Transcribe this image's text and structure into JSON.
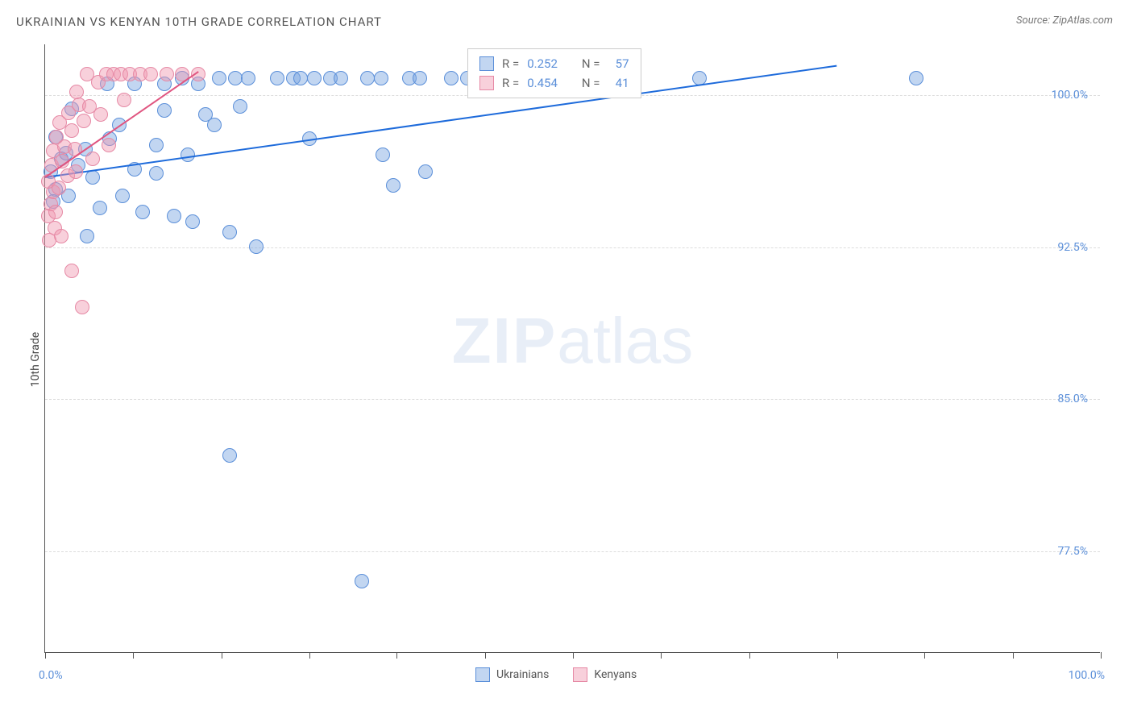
{
  "chart": {
    "title": "UKRAINIAN VS KENYAN 10TH GRADE CORRELATION CHART",
    "source_label": "Source: ZipAtlas.com",
    "y_axis_label": "10th Grade",
    "watermark_zip": "ZIP",
    "watermark_atlas": "atlas",
    "type": "scatter",
    "background_color": "#ffffff",
    "grid_color": "#dddddd",
    "axis_color": "#555555",
    "text_color": "#555555",
    "value_color": "#5b8fd9",
    "xlim": [
      0,
      100
    ],
    "ylim": [
      72.5,
      102.5
    ],
    "x_tick_positions": [
      0,
      8.3,
      16.7,
      25,
      33.3,
      41.7,
      50,
      58.3,
      66.7,
      75,
      83.3,
      91.7,
      100
    ],
    "x_tick_labels": {
      "left": "0.0%",
      "right": "100.0%"
    },
    "y_ticks": [
      {
        "value": 77.5,
        "label": "77.5%"
      },
      {
        "value": 85.0,
        "label": "85.0%"
      },
      {
        "value": 92.5,
        "label": "92.5%"
      },
      {
        "value": 100.0,
        "label": "100.0%"
      }
    ],
    "series": [
      {
        "name": "Ukrainians",
        "fill_color": "rgba(120, 165, 225, 0.45)",
        "stroke_color": "#5b8fd9",
        "swatch_fill": "rgba(120, 165, 225, 0.45)",
        "swatch_stroke": "#5b8fd9",
        "trend_color": "#1e6bdb",
        "trend_width": 2,
        "r_value": "0.252",
        "n_value": "57",
        "trend": {
          "x1": 0,
          "y1": 96.0,
          "x2": 75,
          "y2": 101.5
        },
        "points": [
          {
            "x": 0.5,
            "y": 96.2
          },
          {
            "x": 1,
            "y": 95.3
          },
          {
            "x": 1.5,
            "y": 96.8
          },
          {
            "x": 2,
            "y": 97.1
          },
          {
            "x": 1,
            "y": 97.9
          },
          {
            "x": 2.2,
            "y": 95.0
          },
          {
            "x": 3.1,
            "y": 96.5
          },
          {
            "x": 0.8,
            "y": 94.7
          },
          {
            "x": 2.5,
            "y": 99.3
          },
          {
            "x": 5.2,
            "y": 94.4
          },
          {
            "x": 3.8,
            "y": 97.3
          },
          {
            "x": 4.5,
            "y": 95.9
          },
          {
            "x": 6.1,
            "y": 97.8
          },
          {
            "x": 7.3,
            "y": 95.0
          },
          {
            "x": 5.9,
            "y": 100.5
          },
          {
            "x": 8.5,
            "y": 96.3
          },
          {
            "x": 8.5,
            "y": 100.5
          },
          {
            "x": 9.2,
            "y": 94.2
          },
          {
            "x": 10.5,
            "y": 96.1
          },
          {
            "x": 10.5,
            "y": 97.5
          },
          {
            "x": 11.3,
            "y": 99.2
          },
          {
            "x": 12.2,
            "y": 94.0
          },
          {
            "x": 11.3,
            "y": 100.5
          },
          {
            "x": 13.5,
            "y": 97.0
          },
          {
            "x": 14.5,
            "y": 100.5
          },
          {
            "x": 15.2,
            "y": 99.0
          },
          {
            "x": 16.0,
            "y": 98.5
          },
          {
            "x": 14.0,
            "y": 93.7
          },
          {
            "x": 17.5,
            "y": 93.2
          },
          {
            "x": 18.5,
            "y": 99.4
          },
          {
            "x": 18.0,
            "y": 100.8
          },
          {
            "x": 19.2,
            "y": 100.8
          },
          {
            "x": 20.0,
            "y": 92.5
          },
          {
            "x": 22.0,
            "y": 100.8
          },
          {
            "x": 23.5,
            "y": 100.8
          },
          {
            "x": 24.2,
            "y": 100.8
          },
          {
            "x": 25.5,
            "y": 100.8
          },
          {
            "x": 25.0,
            "y": 97.8
          },
          {
            "x": 27.0,
            "y": 100.8
          },
          {
            "x": 28.0,
            "y": 100.8
          },
          {
            "x": 30.5,
            "y": 100.8
          },
          {
            "x": 31.8,
            "y": 100.8
          },
          {
            "x": 32.0,
            "y": 97.0
          },
          {
            "x": 34.5,
            "y": 100.8
          },
          {
            "x": 35.5,
            "y": 100.8
          },
          {
            "x": 36.0,
            "y": 96.2
          },
          {
            "x": 38.5,
            "y": 100.8
          },
          {
            "x": 40.0,
            "y": 100.8
          },
          {
            "x": 33.0,
            "y": 95.5
          },
          {
            "x": 17.5,
            "y": 82.2
          },
          {
            "x": 30.0,
            "y": 76.0
          },
          {
            "x": 62.0,
            "y": 100.8
          },
          {
            "x": 82.5,
            "y": 100.8
          },
          {
            "x": 16.5,
            "y": 100.8
          },
          {
            "x": 13.0,
            "y": 100.8
          },
          {
            "x": 7.0,
            "y": 98.5
          },
          {
            "x": 4.0,
            "y": 93.0
          }
        ]
      },
      {
        "name": "Kenyans",
        "fill_color": "rgba(240, 150, 175, 0.45)",
        "stroke_color": "#e689a5",
        "swatch_fill": "rgba(240, 150, 175, 0.45)",
        "swatch_stroke": "#e689a5",
        "trend_color": "#e05580",
        "trend_width": 2,
        "r_value": "0.454",
        "n_value": "41",
        "trend": {
          "x1": 0,
          "y1": 96.0,
          "x2": 14.5,
          "y2": 101.2
        },
        "points": [
          {
            "x": 0.3,
            "y": 94.0
          },
          {
            "x": 0.5,
            "y": 94.6
          },
          {
            "x": 0.8,
            "y": 95.2
          },
          {
            "x": 0.3,
            "y": 95.7
          },
          {
            "x": 1.0,
            "y": 94.2
          },
          {
            "x": 0.6,
            "y": 96.5
          },
          {
            "x": 1.3,
            "y": 95.4
          },
          {
            "x": 0.8,
            "y": 97.2
          },
          {
            "x": 1.6,
            "y": 96.7
          },
          {
            "x": 1.1,
            "y": 97.9
          },
          {
            "x": 1.8,
            "y": 97.4
          },
          {
            "x": 0.9,
            "y": 93.4
          },
          {
            "x": 2.1,
            "y": 96.0
          },
          {
            "x": 2.5,
            "y": 98.2
          },
          {
            "x": 1.4,
            "y": 98.6
          },
          {
            "x": 2.8,
            "y": 97.3
          },
          {
            "x": 2.2,
            "y": 99.1
          },
          {
            "x": 3.2,
            "y": 99.5
          },
          {
            "x": 2.9,
            "y": 96.2
          },
          {
            "x": 3.7,
            "y": 98.7
          },
          {
            "x": 3.0,
            "y": 100.1
          },
          {
            "x": 4.2,
            "y": 99.4
          },
          {
            "x": 4.0,
            "y": 101.0
          },
          {
            "x": 5.0,
            "y": 100.6
          },
          {
            "x": 4.5,
            "y": 96.8
          },
          {
            "x": 5.8,
            "y": 101.0
          },
          {
            "x": 6.5,
            "y": 101.0
          },
          {
            "x": 5.3,
            "y": 99.0
          },
          {
            "x": 7.2,
            "y": 101.0
          },
          {
            "x": 8.0,
            "y": 101.0
          },
          {
            "x": 7.5,
            "y": 99.7
          },
          {
            "x": 9.0,
            "y": 101.0
          },
          {
            "x": 10.0,
            "y": 101.0
          },
          {
            "x": 11.5,
            "y": 101.0
          },
          {
            "x": 13.0,
            "y": 101.0
          },
          {
            "x": 14.5,
            "y": 101.0
          },
          {
            "x": 2.5,
            "y": 91.3
          },
          {
            "x": 3.5,
            "y": 89.5
          },
          {
            "x": 6.0,
            "y": 97.5
          },
          {
            "x": 1.5,
            "y": 93.0
          },
          {
            "x": 0.4,
            "y": 92.8
          }
        ]
      }
    ],
    "stat_box": {
      "r_label": "R =",
      "n_label": "N ="
    },
    "legend_bottom_labels": [
      "Ukrainians",
      "Kenyans"
    ],
    "marker_radius": 9,
    "title_fontsize": 15,
    "label_fontsize": 14
  }
}
